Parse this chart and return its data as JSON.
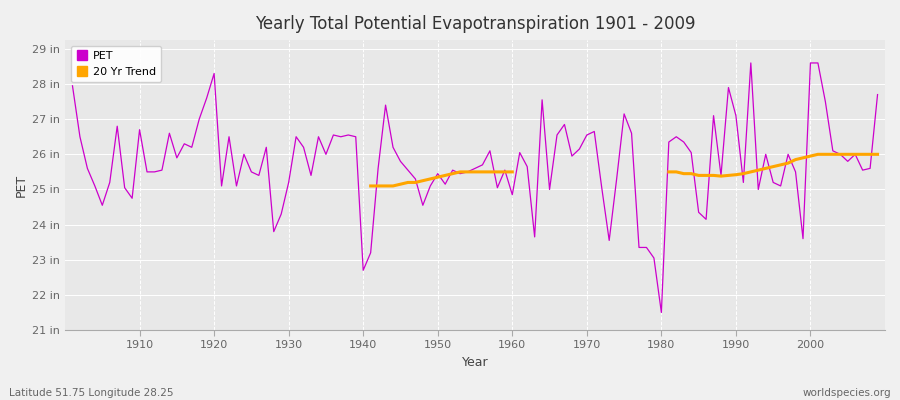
{
  "title": "Yearly Total Potential Evapotranspiration 1901 - 2009",
  "xlabel": "Year",
  "ylabel": "PET",
  "lat_lon_label": "Latitude 51.75 Longitude 28.25",
  "source_label": "worldspecies.org",
  "bg_color": "#f0f0f0",
  "plot_bg_color": "#e8e8e8",
  "pet_color": "#cc00cc",
  "trend_color": "#ffa500",
  "ylim": [
    21,
    29.25
  ],
  "ytick_labels": [
    "21 in",
    "22 in",
    "23 in",
    "24 in",
    "25 in",
    "26 in",
    "27 in",
    "28 in",
    "29 in"
  ],
  "ytick_values": [
    21,
    22,
    23,
    24,
    25,
    26,
    27,
    28,
    29
  ],
  "xticks": [
    1910,
    1920,
    1930,
    1940,
    1950,
    1960,
    1970,
    1980,
    1990,
    2000
  ],
  "xlim": [
    1900,
    2010
  ],
  "years": [
    1901,
    1902,
    1903,
    1904,
    1905,
    1906,
    1907,
    1908,
    1909,
    1910,
    1911,
    1912,
    1913,
    1914,
    1915,
    1916,
    1917,
    1918,
    1919,
    1920,
    1921,
    1922,
    1923,
    1924,
    1925,
    1926,
    1927,
    1928,
    1929,
    1930,
    1931,
    1932,
    1933,
    1934,
    1935,
    1936,
    1937,
    1938,
    1939,
    1940,
    1941,
    1942,
    1943,
    1944,
    1945,
    1946,
    1947,
    1948,
    1949,
    1950,
    1951,
    1952,
    1953,
    1954,
    1955,
    1956,
    1957,
    1958,
    1959,
    1960,
    1961,
    1962,
    1963,
    1964,
    1965,
    1966,
    1967,
    1968,
    1969,
    1970,
    1971,
    1972,
    1973,
    1974,
    1975,
    1976,
    1977,
    1978,
    1979,
    1980,
    1981,
    1982,
    1983,
    1984,
    1985,
    1986,
    1987,
    1988,
    1989,
    1990,
    1991,
    1992,
    1993,
    1994,
    1995,
    1996,
    1997,
    1998,
    1999,
    2000,
    2001,
    2002,
    2003,
    2004,
    2005,
    2006,
    2007,
    2008,
    2009
  ],
  "pet_values": [
    27.95,
    26.5,
    25.6,
    25.1,
    24.55,
    25.2,
    26.8,
    25.05,
    24.75,
    26.7,
    25.5,
    25.5,
    25.55,
    26.6,
    25.9,
    26.3,
    26.2,
    27.0,
    27.6,
    28.3,
    25.1,
    26.5,
    25.1,
    26.0,
    25.5,
    25.4,
    26.2,
    23.8,
    24.3,
    25.2,
    26.5,
    26.2,
    25.4,
    26.5,
    26.0,
    26.55,
    26.5,
    26.55,
    26.5,
    22.7,
    23.2,
    25.6,
    27.4,
    26.2,
    25.8,
    25.55,
    25.3,
    24.55,
    25.1,
    25.45,
    25.15,
    25.55,
    25.45,
    25.5,
    25.6,
    25.7,
    26.1,
    25.05,
    25.55,
    24.85,
    26.05,
    25.65,
    23.65,
    27.55,
    25.0,
    26.55,
    26.85,
    25.95,
    26.15,
    26.55,
    26.65,
    25.05,
    23.55,
    25.3,
    27.15,
    26.6,
    23.35,
    23.35,
    23.05,
    21.5,
    26.35,
    26.5,
    26.35,
    26.05,
    24.35,
    24.15,
    27.1,
    25.4,
    27.9,
    27.1,
    25.2,
    28.6,
    25.0,
    26.0,
    25.2,
    25.1,
    26.0,
    25.5,
    23.6,
    28.6,
    28.6,
    27.5,
    26.1,
    26.0,
    25.8,
    26.0,
    25.55,
    25.6,
    27.7
  ],
  "trend_seg1_years": [
    1941,
    1942,
    1943,
    1944,
    1945,
    1946,
    1947,
    1948,
    1949,
    1950,
    1951,
    1952,
    1953,
    1954,
    1955,
    1956,
    1957,
    1958,
    1959,
    1960
  ],
  "trend_seg1_values": [
    25.1,
    25.1,
    25.1,
    25.1,
    25.15,
    25.2,
    25.2,
    25.25,
    25.3,
    25.35,
    25.4,
    25.45,
    25.5,
    25.5,
    25.5,
    25.5,
    25.5,
    25.5,
    25.5,
    25.5
  ],
  "trend_seg2_years": [
    1981,
    1982,
    1983,
    1984,
    1985,
    1986,
    1987,
    1988,
    1989,
    1990,
    1991,
    1992,
    1993,
    1994,
    1995,
    1996,
    1997,
    1998,
    1999,
    2000,
    2001,
    2002,
    2003,
    2004,
    2005,
    2006,
    2007,
    2008,
    2009
  ],
  "trend_seg2_values": [
    25.5,
    25.5,
    25.45,
    25.45,
    25.4,
    25.4,
    25.4,
    25.38,
    25.4,
    25.42,
    25.45,
    25.5,
    25.55,
    25.6,
    25.65,
    25.7,
    25.75,
    25.85,
    25.9,
    25.95,
    26.0,
    26.0,
    26.0,
    26.0,
    26.0,
    26.0,
    26.0,
    26.0,
    26.0
  ]
}
